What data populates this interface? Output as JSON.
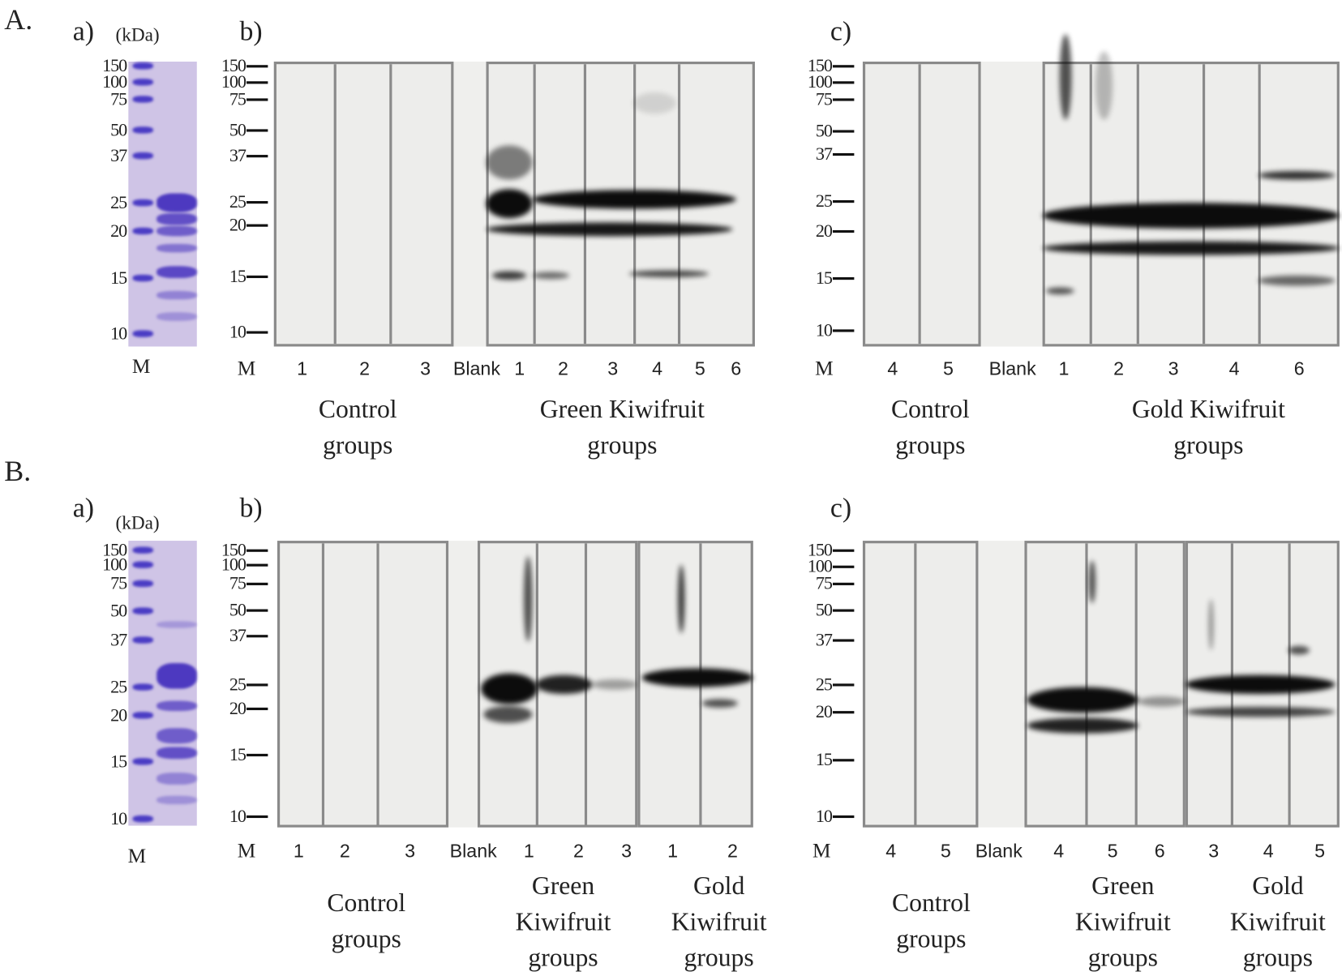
{
  "figure": {
    "A": {
      "label": "A.",
      "a": {
        "label": "a)",
        "unit": "(kDa)",
        "markers": [
          "150",
          "100",
          "75",
          "50",
          "37",
          "25",
          "20",
          "15",
          "10"
        ],
        "lanes": [
          "M"
        ]
      },
      "b": {
        "label": "b)",
        "markers": [
          "150",
          "100",
          "75",
          "50",
          "37",
          "25",
          "20",
          "15",
          "10"
        ],
        "lanes": [
          "M",
          "1",
          "2",
          "3",
          "Blank",
          "1",
          "2",
          "3",
          "4",
          "5",
          "6"
        ],
        "groups": [
          [
            "Control",
            "groups"
          ],
          [
            "Green Kiwifruit",
            "groups"
          ]
        ]
      },
      "c": {
        "label": "c)",
        "markers": [
          "150",
          "100",
          "75",
          "50",
          "37",
          "25",
          "20",
          "15",
          "10"
        ],
        "lanes": [
          "M",
          "4",
          "5",
          "Blank",
          "1",
          "2",
          "3",
          "4",
          "6"
        ],
        "groups": [
          [
            "Control",
            "groups"
          ],
          [
            "Gold Kiwifruit",
            "groups"
          ]
        ]
      }
    },
    "B": {
      "label": "B.",
      "a": {
        "label": "a)",
        "unit": "(kDa)",
        "markers": [
          "150",
          "100",
          "75",
          "50",
          "37",
          "25",
          "20",
          "15",
          "10"
        ],
        "lanes": [
          "M"
        ]
      },
      "b": {
        "label": "b)",
        "markers": [
          "150",
          "100",
          "75",
          "50",
          "37",
          "25",
          "20",
          "15",
          "10"
        ],
        "lanes": [
          "M",
          "1",
          "2",
          "3",
          "Blank",
          "1",
          "2",
          "3",
          "1",
          "2"
        ],
        "groups": [
          [
            "Control",
            "groups"
          ],
          [
            "Green",
            "Kiwifruit",
            "groups"
          ],
          [
            "Gold",
            "Kiwifruit",
            "groups"
          ]
        ]
      },
      "c": {
        "label": "c)",
        "markers": [
          "150",
          "100",
          "75",
          "50",
          "37",
          "25",
          "20",
          "15",
          "10"
        ],
        "lanes": [
          "M",
          "4",
          "5",
          "Blank",
          "4",
          "5",
          "6",
          "3",
          "4",
          "5"
        ],
        "groups": [
          [
            "Control",
            "groups"
          ],
          [
            "Green",
            "Kiwifruit",
            "groups"
          ],
          [
            "Gold",
            "Kiwifruit",
            "groups"
          ]
        ]
      }
    }
  },
  "colors": {
    "frame": "#8a8a8a",
    "membrane": "#ededeb",
    "band": "#0c0c0c",
    "coomassie": "#5a48c0"
  }
}
